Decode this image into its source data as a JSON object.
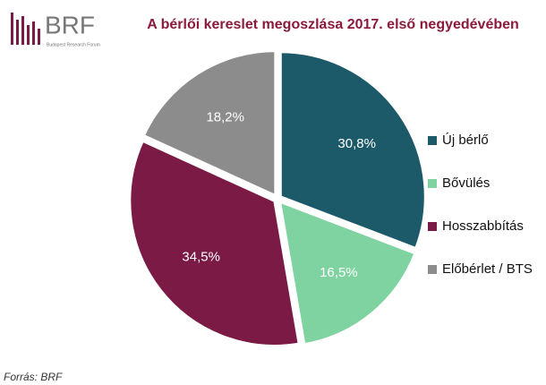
{
  "logo": {
    "text": "BRF",
    "subtitle": "Budapest Research Forum"
  },
  "chart_data": {
    "type": "pie",
    "title": "A bérlői kereslet megoszlása 2017. első negyedévében",
    "categories": [
      "Új bérlő",
      "Bővülés",
      "Hosszabbítás",
      "Előbérlet / BTS"
    ],
    "values": [
      30.8,
      16.5,
      34.5,
      18.2
    ],
    "value_labels": [
      "30,8%",
      "16,5%",
      "34,5%",
      "18,2%"
    ],
    "colors": [
      "#1d5a69",
      "#7ed3a0",
      "#7a1a45",
      "#8c8c8c"
    ],
    "legend": "right"
  },
  "source": "Forrás: BRF"
}
